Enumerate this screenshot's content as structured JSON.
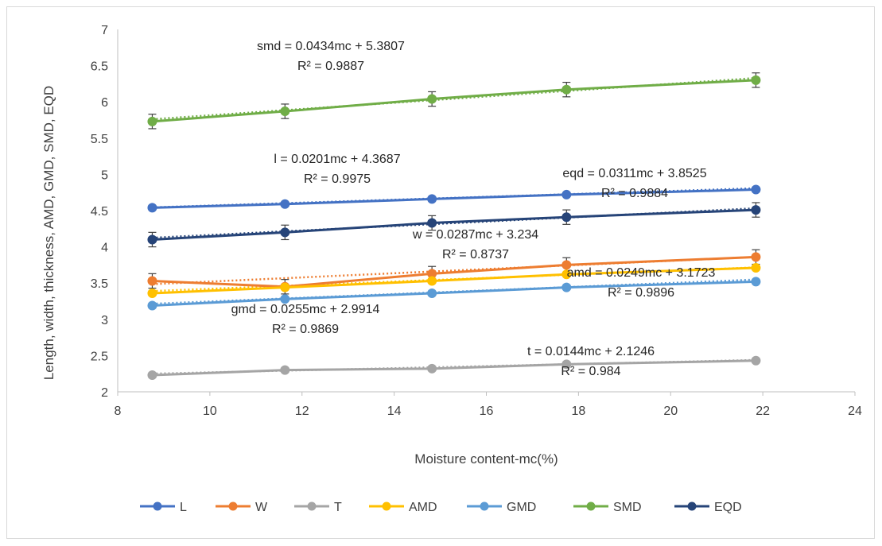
{
  "chart_data": {
    "type": "line",
    "title": "",
    "xlabel": "Moisture content-mc(%)",
    "ylabel": "Length, width, thickness, AMD, GMD, SMD, EQD",
    "xlim": [
      8,
      24
    ],
    "ylim": [
      2,
      7
    ],
    "x_ticks": [
      "8",
      "10",
      "12",
      "14",
      "16",
      "18",
      "20",
      "22",
      "24"
    ],
    "y_ticks": [
      "2",
      "2.5",
      "3",
      "3.5",
      "4",
      "4.5",
      "5",
      "5.5",
      "6",
      "6.5",
      "7"
    ],
    "x": [
      8.75,
      11.63,
      14.82,
      17.74,
      21.85
    ],
    "grid": false,
    "legend_position": "bottom",
    "series": [
      {
        "name": "L",
        "color": "#4472C4",
        "values": [
          4.54,
          4.59,
          4.66,
          4.72,
          4.79
        ]
      },
      {
        "name": "W",
        "color": "#ED7D31",
        "values": [
          3.53,
          3.45,
          3.63,
          3.75,
          3.86
        ]
      },
      {
        "name": "T",
        "color": "#A5A5A5",
        "values": [
          2.23,
          2.3,
          2.32,
          2.38,
          2.43
        ]
      },
      {
        "name": "AMD",
        "color": "#FFC000",
        "values": [
          3.36,
          3.44,
          3.53,
          3.62,
          3.71
        ]
      },
      {
        "name": "GMD",
        "color": "#5B9BD5",
        "values": [
          3.19,
          3.28,
          3.36,
          3.44,
          3.52
        ]
      },
      {
        "name": "SMD",
        "color": "#70AD47",
        "values": [
          5.73,
          5.87,
          6.04,
          6.17,
          6.3
        ]
      },
      {
        "name": "EQD",
        "color": "#264478",
        "values": [
          4.1,
          4.2,
          4.33,
          4.41,
          4.51
        ]
      }
    ],
    "error_bars": {
      "series": [
        "SMD",
        "W",
        "EQD"
      ],
      "size": 0.1
    },
    "trendlines": [
      {
        "series": "SMD",
        "equation": "smd = 0.0434mc + 5.3807",
        "r2": "R² = 0.9887"
      },
      {
        "series": "L",
        "equation": "l = 0.0201mc + 4.3687",
        "r2": "R² = 0.9975"
      },
      {
        "series": "EQD",
        "equation": "eqd = 0.0311mc + 3.8525",
        "r2": "R² = 0.9884"
      },
      {
        "series": "W",
        "equation": "w = 0.0287mc + 3.234",
        "r2": "R² = 0.8737"
      },
      {
        "series": "AMD",
        "equation": "amd = 0.0249mc + 3.1723",
        "r2": "R² = 0.9896"
      },
      {
        "series": "GMD",
        "equation": "gmd = 0.0255mc + 2.9914",
        "r2": "R² = 0.9869"
      },
      {
        "series": "T",
        "equation": "t = 0.0144mc + 2.1246",
        "r2": "R² = 0.984"
      }
    ]
  }
}
